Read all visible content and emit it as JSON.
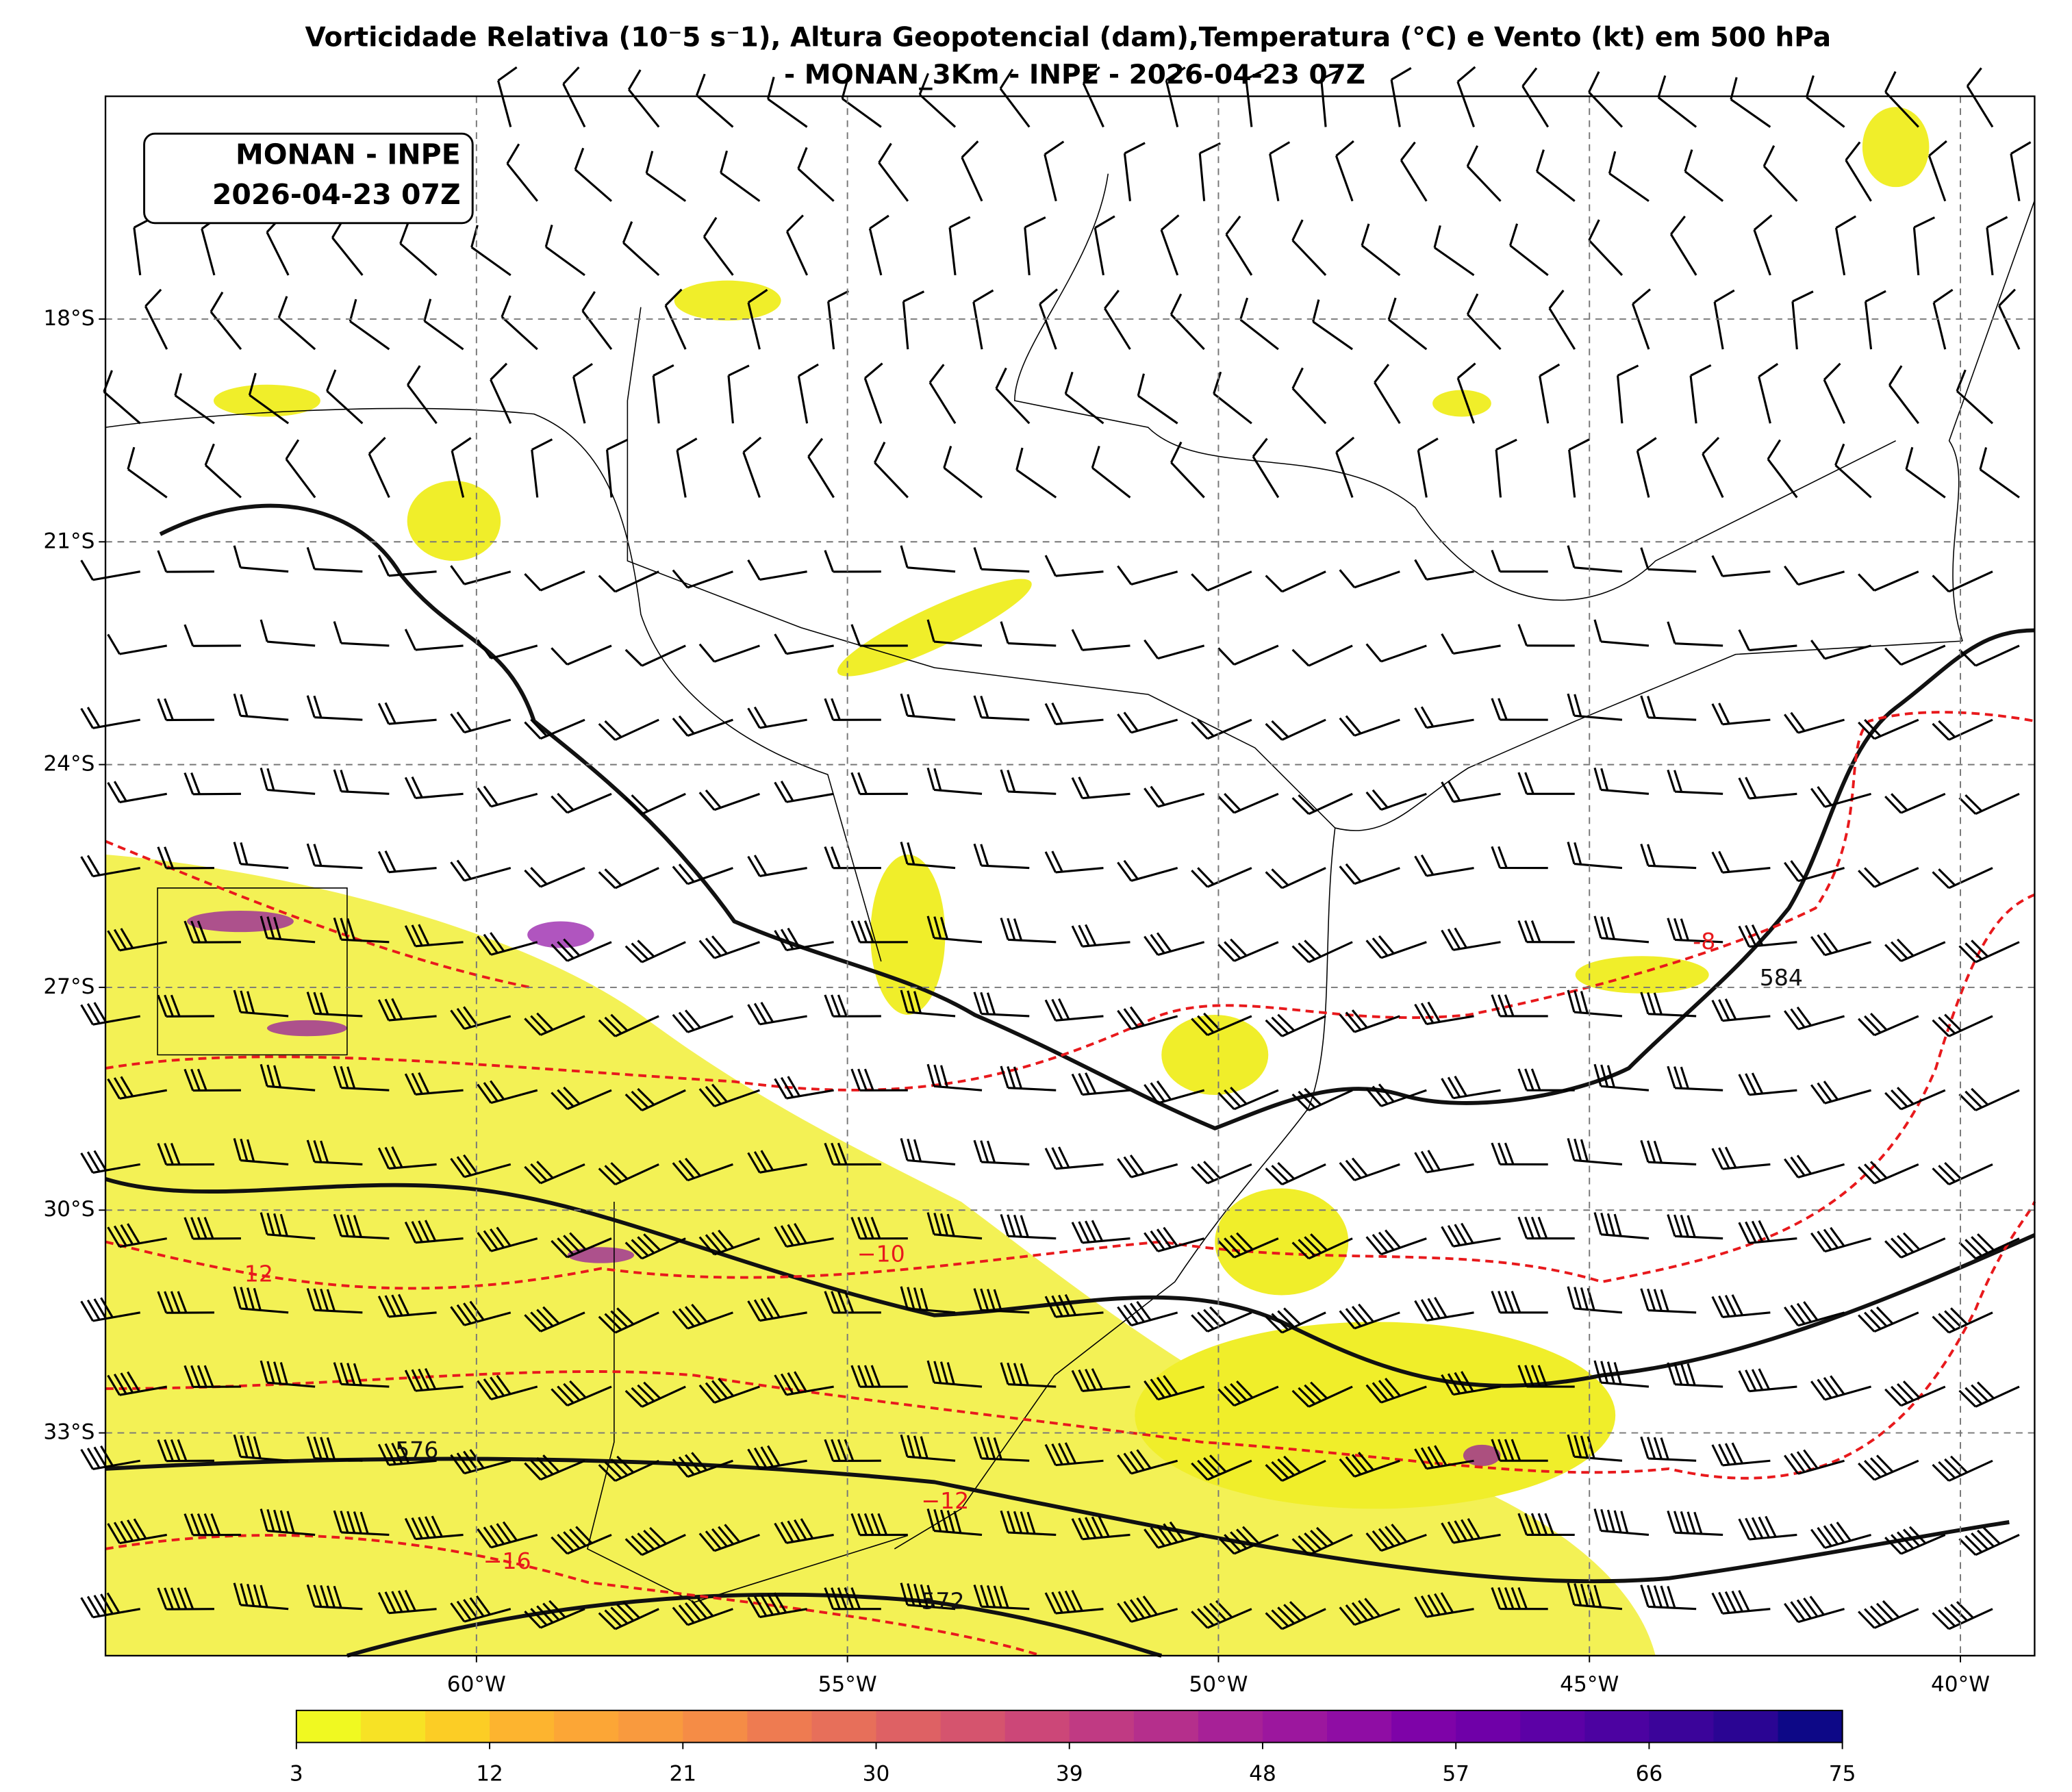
{
  "chart_data": {
    "type": "map",
    "title": [
      "Vorticidade Relativa (10⁻5 s⁻1), Altura Geopotencial (dam),Temperatura (°C) e Vento (kt) em 500 hPa",
      "- MONAN_3Km - INPE - 2026-04-23 07Z"
    ],
    "annotation": [
      "MONAN - INPE",
      "2026-04-23 07Z"
    ],
    "xlim": [
      -65,
      -39
    ],
    "ylim": [
      -36,
      -15
    ],
    "xticks": [
      {
        "value": -60,
        "label": "60°W"
      },
      {
        "value": -55,
        "label": "55°W"
      },
      {
        "value": -50,
        "label": "50°W"
      },
      {
        "value": -45,
        "label": "45°W"
      },
      {
        "value": -40,
        "label": "40°W"
      }
    ],
    "yticks": [
      {
        "value": -18,
        "label": "18°S"
      },
      {
        "value": -21,
        "label": "21°S"
      },
      {
        "value": -24,
        "label": "24°S"
      },
      {
        "value": -27,
        "label": "27°S"
      },
      {
        "value": -30,
        "label": "30°S"
      },
      {
        "value": -33,
        "label": "33°S"
      }
    ],
    "grid": true,
    "height_contour_labels": [
      584,
      576,
      572
    ],
    "temperature_contour_labels": [
      "-8",
      "−10",
      "12",
      "−12",
      "−16"
    ],
    "colorbar": {
      "lim": [
        3,
        75
      ],
      "ticks": [
        3,
        12,
        21,
        30,
        39,
        48,
        57,
        66,
        75
      ],
      "colors": [
        "#f0f921",
        "#f7e225",
        "#fccd25",
        "#fdb42f",
        "#fca636",
        "#f99a3e",
        "#f58c46",
        "#ee7b51",
        "#e76f5a",
        "#de6164",
        "#d5546e",
        "#cc4778",
        "#c03a83",
        "#b52f8c",
        "#a72197",
        "#9c179e",
        "#8f0da4",
        "#7e03a8",
        "#6f00a8",
        "#5c01a6",
        "#4c02a1",
        "#3b049a",
        "#2a0593",
        "#0d0887"
      ]
    }
  }
}
